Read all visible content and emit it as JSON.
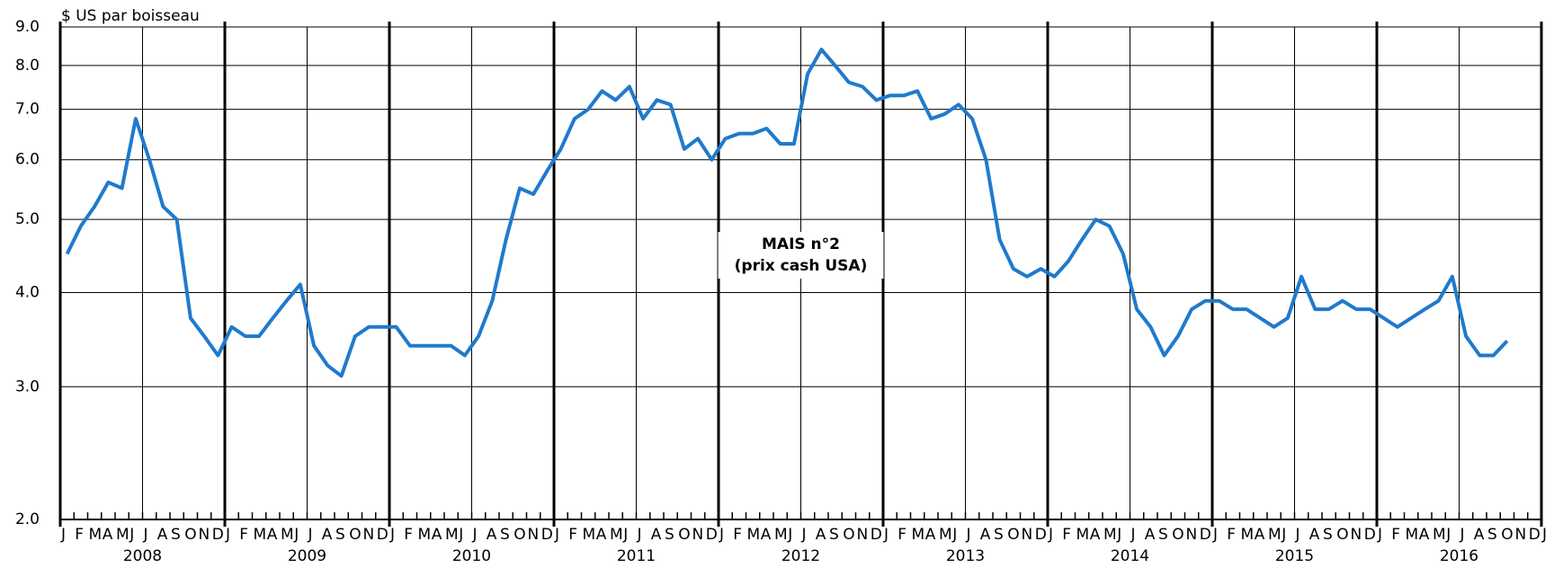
{
  "chart_data": {
    "type": "line",
    "y_label": "$ US par boisseau",
    "annotation": [
      "MAIS n°2",
      "(prix cash USA)"
    ],
    "log_scale": true,
    "grid": true,
    "ylim": [
      2,
      9
    ],
    "yticks": [
      {
        "value": 2,
        "label": "2.0"
      },
      {
        "value": 3,
        "label": "3.0"
      },
      {
        "value": 4,
        "label": "4.0"
      },
      {
        "value": 5,
        "label": "5.0"
      },
      {
        "value": 6,
        "label": "6.0"
      },
      {
        "value": 7,
        "label": "7.0"
      },
      {
        "value": 8,
        "label": "8.0"
      },
      {
        "value": 9,
        "label": "9.0"
      }
    ],
    "month_labels": [
      "J",
      "F",
      "M",
      "A",
      "M",
      "J",
      "J",
      "A",
      "S",
      "O",
      "N",
      "D"
    ],
    "years": [
      "2008",
      "2009",
      "2010",
      "2011",
      "2012",
      "2013",
      "2014",
      "2015",
      "2016"
    ],
    "x": [
      "2008-01",
      "2008-02",
      "2008-03",
      "2008-04",
      "2008-05",
      "2008-06",
      "2008-07",
      "2008-08",
      "2008-09",
      "2008-10",
      "2008-11",
      "2008-12",
      "2009-01",
      "2009-02",
      "2009-03",
      "2009-04",
      "2009-05",
      "2009-06",
      "2009-07",
      "2009-08",
      "2009-09",
      "2009-10",
      "2009-11",
      "2009-12",
      "2010-01",
      "2010-02",
      "2010-03",
      "2010-04",
      "2010-05",
      "2010-06",
      "2010-07",
      "2010-08",
      "2010-09",
      "2010-10",
      "2010-11",
      "2010-12",
      "2011-01",
      "2011-02",
      "2011-03",
      "2011-04",
      "2011-05",
      "2011-06",
      "2011-07",
      "2011-08",
      "2011-09",
      "2011-10",
      "2011-11",
      "2011-12",
      "2012-01",
      "2012-02",
      "2012-03",
      "2012-04",
      "2012-05",
      "2012-06",
      "2012-07",
      "2012-08",
      "2012-09",
      "2012-10",
      "2012-11",
      "2012-12",
      "2013-01",
      "2013-02",
      "2013-03",
      "2013-04",
      "2013-05",
      "2013-06",
      "2013-07",
      "2013-08",
      "2013-09",
      "2013-10",
      "2013-11",
      "2013-12",
      "2014-01",
      "2014-02",
      "2014-03",
      "2014-04",
      "2014-05",
      "2014-06",
      "2014-07",
      "2014-08",
      "2014-09",
      "2014-10",
      "2014-11",
      "2014-12",
      "2015-01",
      "2015-02",
      "2015-03",
      "2015-04",
      "2015-05",
      "2015-06",
      "2015-07",
      "2015-08",
      "2015-09",
      "2015-10",
      "2015-11",
      "2015-12",
      "2016-01",
      "2016-02",
      "2016-03",
      "2016-04",
      "2016-05",
      "2016-06",
      "2016-07",
      "2016-08",
      "2016-09",
      "2016-10"
    ],
    "series": [
      {
        "name": "MAIS n°2",
        "color": "#1f7acc",
        "values": [
          4.5,
          4.9,
          5.2,
          5.6,
          5.5,
          6.8,
          6.0,
          5.2,
          5.0,
          3.7,
          3.5,
          3.3,
          3.6,
          3.5,
          3.5,
          3.7,
          3.9,
          4.1,
          3.4,
          3.2,
          3.1,
          3.5,
          3.6,
          3.6,
          3.6,
          3.4,
          3.4,
          3.4,
          3.4,
          3.3,
          3.5,
          3.9,
          4.7,
          5.5,
          5.4,
          5.8,
          6.2,
          6.8,
          7.0,
          7.4,
          7.2,
          7.5,
          6.8,
          7.2,
          7.1,
          6.2,
          6.4,
          6.0,
          6.4,
          6.5,
          6.5,
          6.6,
          6.3,
          6.3,
          7.8,
          8.4,
          8.0,
          7.6,
          7.5,
          7.2,
          7.3,
          7.3,
          7.4,
          6.8,
          6.9,
          7.1,
          6.8,
          6.0,
          4.7,
          4.3,
          4.2,
          4.3,
          4.2,
          4.4,
          4.7,
          5.0,
          4.9,
          4.5,
          3.8,
          3.6,
          3.3,
          3.5,
          3.8,
          3.9,
          3.9,
          3.8,
          3.8,
          3.7,
          3.6,
          3.7,
          4.2,
          3.8,
          3.8,
          3.9,
          3.8,
          3.8,
          3.7,
          3.6,
          3.7,
          3.8,
          3.9,
          4.2,
          3.5,
          3.3,
          3.3,
          3.45
        ]
      }
    ]
  }
}
